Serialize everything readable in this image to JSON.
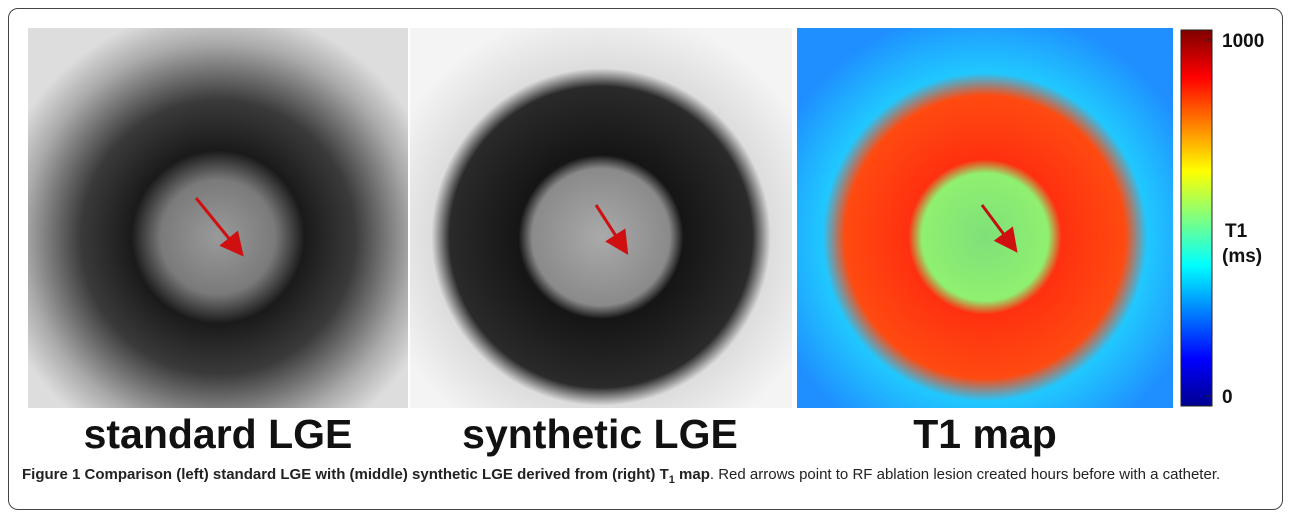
{
  "panels": [
    {
      "label": "standard LGE"
    },
    {
      "label": "synthetic LGE"
    },
    {
      "label": "T1 map"
    }
  ],
  "colorbar": {
    "ticks": [
      0,
      1000
    ],
    "label_line1": "T1",
    "label_line2": "(ms)"
  },
  "caption": {
    "figure": "Figure 1",
    "bold": "Comparison (left) standard LGE with (middle) synthetic LGE derived from (right) T",
    "subscript": "1",
    "bold_end": " map",
    "text": ". Red arrows point to RF ablation lesion created hours before with a catheter."
  }
}
